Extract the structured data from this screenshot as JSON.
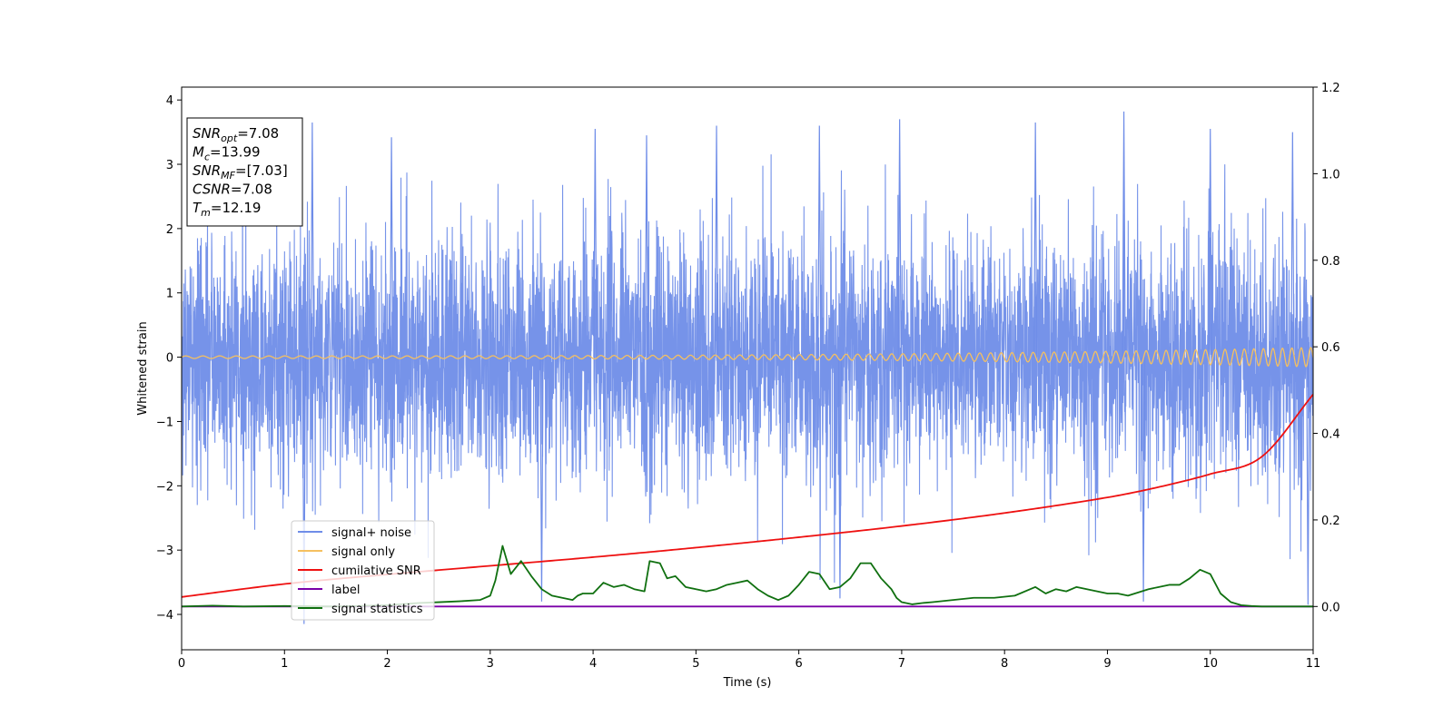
{
  "chart_data": {
    "type": "line",
    "xlabel": "Time (s)",
    "ylabel": "Whitened strain",
    "xlim": [
      0,
      11
    ],
    "ylim": [
      -4.55,
      4.2
    ],
    "ylim_right": [
      -0.1,
      1.2
    ],
    "grid": false,
    "x_ticks": [
      0,
      1,
      2,
      3,
      4,
      5,
      6,
      7,
      8,
      9,
      10,
      11
    ],
    "y_ticks": [
      -4,
      -3,
      -2,
      -1,
      0,
      1,
      2,
      3,
      4
    ],
    "y_ticks_right": [
      "0.0",
      "0.2",
      "0.4",
      "0.6",
      "0.8",
      "1.0",
      "1.2"
    ],
    "y_tick_values_right": [
      0.0,
      0.2,
      0.4,
      0.6,
      0.8,
      1.0,
      1.2
    ],
    "legend_position": "lower-left",
    "annotation_box": {
      "position": "top-left",
      "lines": [
        {
          "base": "SNR",
          "sub": "opt",
          "rest": "=7.08"
        },
        {
          "base": "M",
          "sub": "c",
          "rest": "=13.99"
        },
        {
          "base": "SNR",
          "sub": "MF",
          "rest": "=[7.03]"
        },
        {
          "base": "CSNR",
          "sub": "",
          "rest": "=7.08"
        },
        {
          "base": "T",
          "sub": "m",
          "rest": "=12.19"
        }
      ]
    },
    "series": [
      {
        "name": "signal+ noise",
        "color": "#6f8de8",
        "axis": "left",
        "description_amplitude": {
          "rms": 0.95,
          "envelope_typical": [
            -2.3,
            2.4
          ],
          "extreme_peaks": [
            {
              "x": 1.27,
              "y": 3.65
            },
            {
              "x": 1.19,
              "y": -4.15
            },
            {
              "x": 2.04,
              "y": 3.42
            },
            {
              "x": 4.02,
              "y": 3.55
            },
            {
              "x": 4.52,
              "y": 3.45
            },
            {
              "x": 5.2,
              "y": 3.6
            },
            {
              "x": 6.2,
              "y": 3.6
            },
            {
              "x": 6.98,
              "y": 3.7
            },
            {
              "x": 8.3,
              "y": 3.65
            },
            {
              "x": 9.16,
              "y": 3.82
            },
            {
              "x": 10.0,
              "y": 3.55
            },
            {
              "x": 10.8,
              "y": 3.5
            },
            {
              "x": 3.5,
              "y": -3.8
            },
            {
              "x": 6.4,
              "y": -3.75
            },
            {
              "x": 9.35,
              "y": -3.8
            },
            {
              "x": 10.95,
              "y": -3.85
            }
          ]
        }
      },
      {
        "name": "signal only",
        "color": "#f5c060",
        "axis": "left",
        "chirp": {
          "amplitude_start": 0.02,
          "amplitude_end": 0.15,
          "f_start_hz": 6,
          "f_end_hz": 11
        }
      },
      {
        "name": "cumilative SNR",
        "color": "#ee1111",
        "axis": "right",
        "x": [
          0,
          1,
          2,
          3,
          4,
          5,
          6,
          7,
          8,
          9,
          9.5,
          10,
          10.5,
          11
        ],
        "y": [
          0.022,
          0.052,
          0.074,
          0.094,
          0.114,
          0.136,
          0.16,
          0.186,
          0.216,
          0.252,
          0.276,
          0.306,
          0.346,
          0.49
        ]
      },
      {
        "name": "label",
        "color": "#7a00a8",
        "axis": "right",
        "x": [
          0,
          11
        ],
        "y": [
          0.0,
          0.0
        ]
      },
      {
        "name": "signal statistics",
        "color": "#107010",
        "axis": "right",
        "x": [
          0,
          0.3,
          0.6,
          1.0,
          1.5,
          2.0,
          2.3,
          2.5,
          2.7,
          2.9,
          3.0,
          3.05,
          3.12,
          3.2,
          3.3,
          3.4,
          3.5,
          3.6,
          3.7,
          3.8,
          3.85,
          3.9,
          4.0,
          4.1,
          4.2,
          4.3,
          4.4,
          4.5,
          4.55,
          4.65,
          4.72,
          4.8,
          4.9,
          5.0,
          5.1,
          5.2,
          5.3,
          5.4,
          5.5,
          5.6,
          5.7,
          5.8,
          5.9,
          6.0,
          6.1,
          6.2,
          6.3,
          6.4,
          6.5,
          6.6,
          6.7,
          6.8,
          6.9,
          6.95,
          7.0,
          7.1,
          7.2,
          7.3,
          7.5,
          7.7,
          7.9,
          8.1,
          8.3,
          8.4,
          8.5,
          8.6,
          8.7,
          8.8,
          8.9,
          9.0,
          9.1,
          9.2,
          9.4,
          9.5,
          9.6,
          9.7,
          9.8,
          9.9,
          10.0,
          10.1,
          10.2,
          10.3,
          10.4,
          10.5,
          10.7,
          11.0
        ],
        "y": [
          0.0,
          0.002,
          0.0,
          0.001,
          0.0,
          0.003,
          0.008,
          0.01,
          0.012,
          0.015,
          0.025,
          0.06,
          0.14,
          0.075,
          0.105,
          0.07,
          0.04,
          0.025,
          0.02,
          0.015,
          0.025,
          0.03,
          0.03,
          0.055,
          0.045,
          0.05,
          0.04,
          0.035,
          0.105,
          0.1,
          0.065,
          0.07,
          0.045,
          0.04,
          0.035,
          0.04,
          0.05,
          0.055,
          0.06,
          0.04,
          0.025,
          0.015,
          0.025,
          0.05,
          0.08,
          0.075,
          0.04,
          0.045,
          0.065,
          0.1,
          0.1,
          0.065,
          0.04,
          0.02,
          0.01,
          0.005,
          0.008,
          0.01,
          0.015,
          0.02,
          0.02,
          0.025,
          0.045,
          0.03,
          0.04,
          0.035,
          0.045,
          0.04,
          0.035,
          0.03,
          0.03,
          0.025,
          0.04,
          0.045,
          0.05,
          0.05,
          0.065,
          0.085,
          0.075,
          0.03,
          0.01,
          0.003,
          0.001,
          0.0,
          0.0,
          0.0
        ]
      }
    ]
  }
}
